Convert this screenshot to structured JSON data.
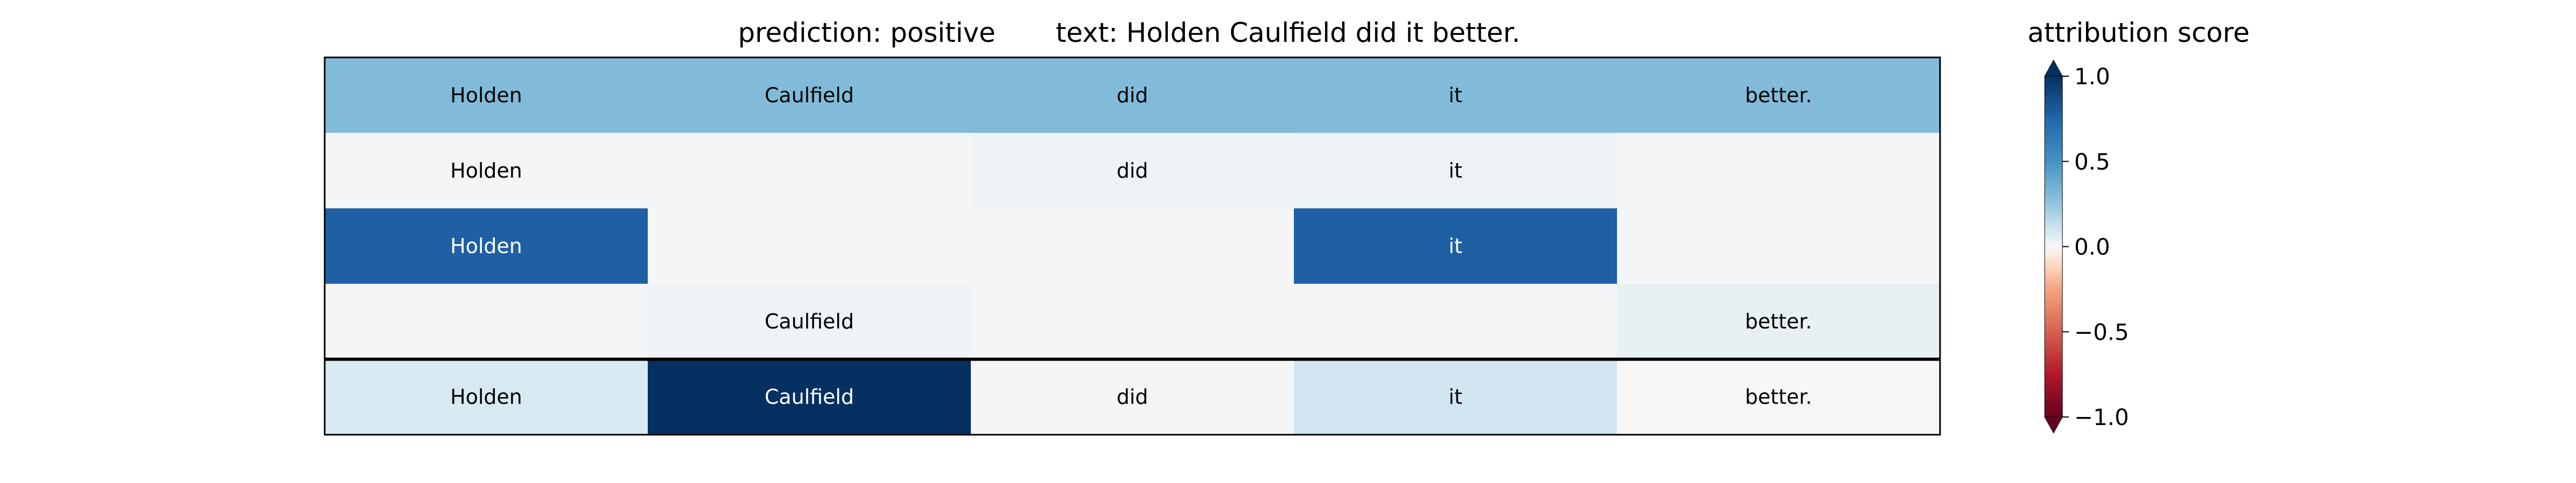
{
  "chart_data": {
    "type": "heatmap",
    "title_prediction": "prediction:  positive",
    "title_text": "text:  Holden Caulfield did it better.",
    "columns": [
      "Holden",
      "Caulfield",
      "did",
      "it",
      "better."
    ],
    "rows": [
      {
        "labels": [
          "Holden",
          "Caulfield",
          "did",
          "it",
          "better."
        ],
        "values": [
          0.3,
          0.3,
          0.3,
          0.3,
          0.3
        ]
      },
      {
        "labels": [
          "Holden",
          "",
          "did",
          "it",
          ""
        ],
        "values": [
          0.01,
          0.01,
          0.02,
          0.03,
          0.01
        ]
      },
      {
        "labels": [
          "Holden",
          "",
          "",
          "it",
          ""
        ],
        "values": [
          0.78,
          0.01,
          0.01,
          0.78,
          0.01
        ]
      },
      {
        "labels": [
          "",
          "Caulfield",
          "",
          "",
          "better."
        ],
        "values": [
          0.01,
          0.02,
          0.01,
          0.01,
          0.04
        ]
      },
      {
        "labels": [
          "Holden",
          "Caulfield",
          "did",
          "it",
          "better."
        ],
        "values": [
          0.08,
          1.0,
          0.01,
          0.1,
          0.0
        ]
      }
    ],
    "colorbar": {
      "title": "attribution score",
      "colormap": "RdBu",
      "range": [
        -1.0,
        1.0
      ],
      "ticks": [
        1.0,
        0.5,
        0.0,
        -0.5,
        -1.0
      ],
      "tick_labels": [
        "1.0",
        "0.5",
        "0.0",
        "−0.5",
        "−1.0"
      ]
    }
  }
}
